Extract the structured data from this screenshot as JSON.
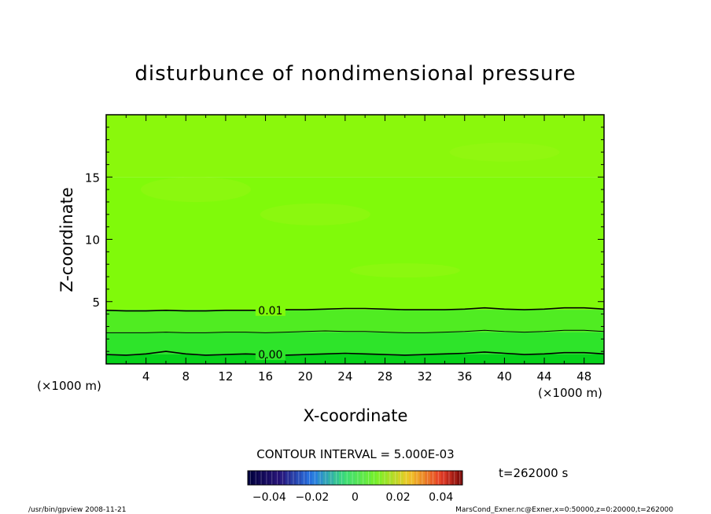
{
  "chart_data": {
    "type": "heatmap",
    "title": "disturbunce of nondimensional pressure",
    "xlabel": "X-coordinate",
    "ylabel": "Z-coordinate",
    "x_unit": "(×1000 m)",
    "y_unit": "(×1000 m)",
    "xlim": [
      0,
      50
    ],
    "ylim": [
      0,
      20
    ],
    "x_ticks": [
      4,
      8,
      12,
      16,
      20,
      24,
      28,
      32,
      36,
      40,
      44,
      48
    ],
    "y_ticks": [
      5,
      10,
      15
    ],
    "contours": [
      {
        "label": "0.01",
        "x": [
          0,
          2,
          4,
          6,
          8,
          10,
          12,
          14,
          16,
          18,
          20,
          22,
          24,
          26,
          28,
          30,
          32,
          34,
          36,
          38,
          40,
          42,
          44,
          46,
          48,
          50
        ],
        "z": [
          4.3,
          4.25,
          4.25,
          4.3,
          4.25,
          4.25,
          4.3,
          4.3,
          4.3,
          4.35,
          4.35,
          4.4,
          4.45,
          4.45,
          4.4,
          4.35,
          4.35,
          4.35,
          4.4,
          4.5,
          4.4,
          4.35,
          4.4,
          4.5,
          4.5,
          4.4
        ]
      },
      {
        "label": "",
        "x": [
          0,
          2,
          4,
          6,
          8,
          10,
          12,
          14,
          16,
          18,
          20,
          22,
          24,
          26,
          28,
          30,
          32,
          34,
          36,
          38,
          40,
          42,
          44,
          46,
          48,
          50
        ],
        "z": [
          2.5,
          2.5,
          2.5,
          2.55,
          2.5,
          2.5,
          2.55,
          2.55,
          2.5,
          2.55,
          2.6,
          2.65,
          2.6,
          2.6,
          2.55,
          2.5,
          2.5,
          2.55,
          2.6,
          2.7,
          2.6,
          2.55,
          2.6,
          2.7,
          2.7,
          2.6
        ]
      },
      {
        "label": "0.00",
        "x": [
          0,
          2,
          4,
          6,
          8,
          10,
          12,
          14,
          16,
          18,
          20,
          22,
          24,
          26,
          28,
          30,
          32,
          34,
          36,
          38,
          40,
          42,
          44,
          46,
          48,
          50
        ],
        "z": [
          0.75,
          0.7,
          0.8,
          1.0,
          0.8,
          0.7,
          0.75,
          0.8,
          0.75,
          0.7,
          0.75,
          0.8,
          0.85,
          0.8,
          0.75,
          0.7,
          0.75,
          0.8,
          0.85,
          0.95,
          0.85,
          0.75,
          0.8,
          0.9,
          0.9,
          0.8
        ]
      }
    ],
    "bands": [
      {
        "color": "#06d21a",
        "z": [
          0,
          0.8
        ]
      },
      {
        "color": "#2ee42a",
        "z": [
          0.8,
          2.55
        ]
      },
      {
        "color": "#50ec22",
        "z": [
          2.55,
          4.35
        ]
      },
      {
        "color": "#80fa0a",
        "z": [
          4.35,
          15.0
        ]
      },
      {
        "color": "#8af80c",
        "z": [
          15.0,
          20.0
        ]
      }
    ],
    "contour_interval": "CONTOUR INTERVAL = 5.000E-03",
    "colorbar": {
      "ticks": [
        "−0.04",
        "−0.02",
        "0",
        "0.02",
        "0.04"
      ],
      "tick_values": [
        -0.04,
        -0.02,
        0,
        0.02,
        0.04
      ],
      "range": [
        -0.05,
        0.05
      ]
    },
    "time_label": "t=262000 s"
  },
  "footer": {
    "left": "/usr/bin/gpview   2008-11-21",
    "right": "MarsCond_Exner.nc@Exner,x=0:50000,z=0:20000,t=262000"
  }
}
